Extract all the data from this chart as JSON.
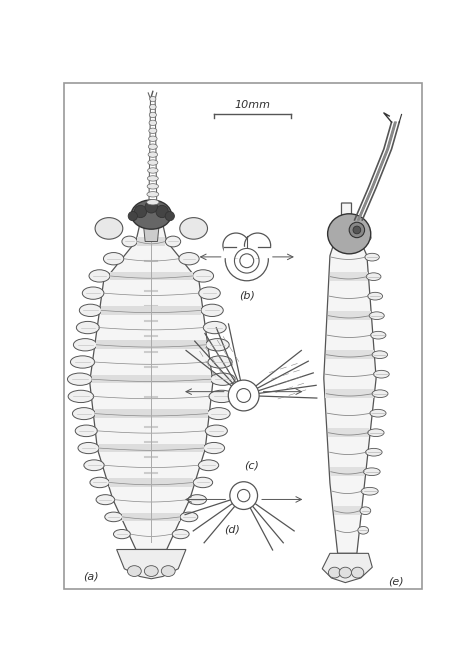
{
  "bg_color": "#ffffff",
  "border_color": "#aaaaaa",
  "title": "10mm",
  "label_a": "(a)",
  "label_b": "(b)",
  "label_c": "(c)",
  "label_d": "(d)",
  "label_e": "(e)",
  "fig_width": 4.74,
  "fig_height": 6.65,
  "dpi": 100,
  "line_color": "#555555",
  "dark_color": "#333333",
  "fill_light": "#e0e0e0",
  "fill_mid": "#c0c0c0",
  "fill_dark": "#888888"
}
